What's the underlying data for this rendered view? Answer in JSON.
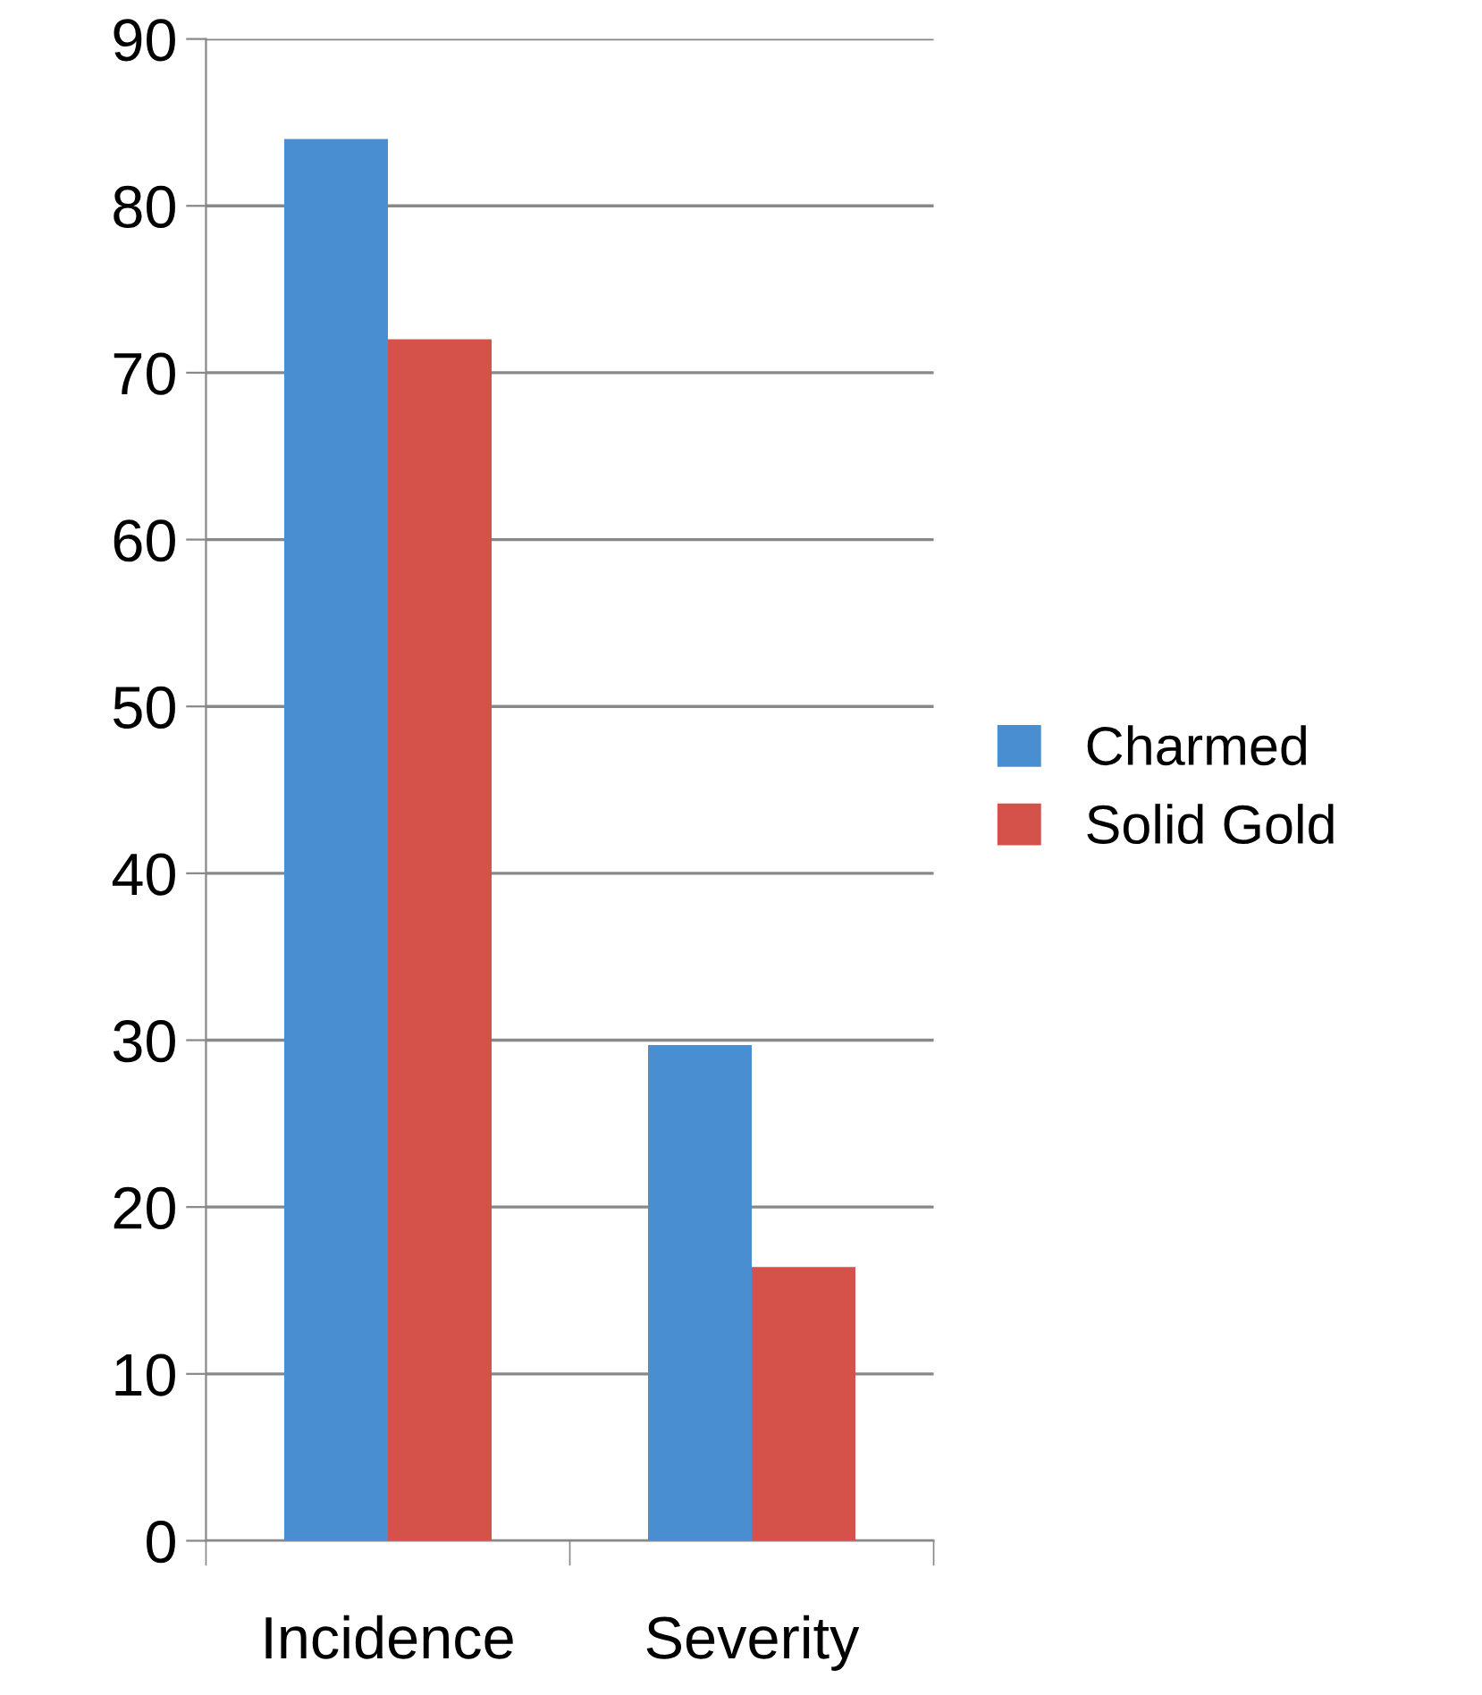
{
  "chart_data": {
    "type": "bar",
    "categories": [
      "Incidence",
      "Severity"
    ],
    "series": [
      {
        "name": "Charmed",
        "color": "#4a8ed2",
        "values": [
          84,
          29.7
        ]
      },
      {
        "name": "Solid Gold",
        "color": "#d4524a",
        "values": [
          72,
          16.4
        ]
      }
    ],
    "ylim": [
      0,
      90
    ],
    "yticks": [
      0,
      10,
      20,
      30,
      40,
      50,
      60,
      70,
      80,
      90
    ],
    "grid": "y",
    "legend": "right"
  }
}
